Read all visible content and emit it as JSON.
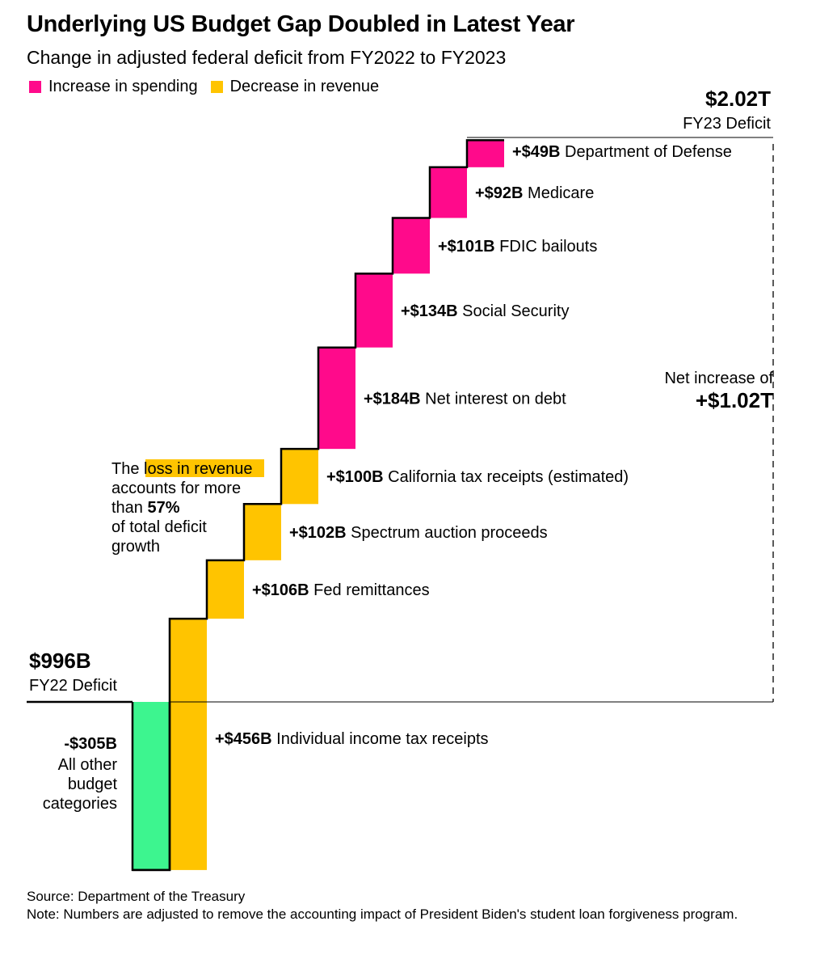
{
  "title": "Underlying US Budget Gap Doubled in Latest Year",
  "subtitle": "Change in adjusted federal deficit from FY2022 to FY2023",
  "legend": [
    {
      "label": "Increase in spending",
      "color": "#FF0A8B"
    },
    {
      "label": "Decrease in revenue",
      "color": "#FFC400"
    }
  ],
  "colors": {
    "spending": "#FF0A8B",
    "revenue": "#FFC400",
    "other": "#3DF58F",
    "highlight": "#FFC400",
    "line": "#000000",
    "connector": "#000000"
  },
  "chart_data": {
    "type": "waterfall",
    "unit": "$B",
    "start": {
      "value": 996,
      "value_label": "$996B",
      "label": "FY22 Deficit"
    },
    "end": {
      "value": 2020,
      "value_label": "$2.02T",
      "label": "FY23 Deficit"
    },
    "steps": [
      {
        "name": "All other budget categories",
        "value": -305,
        "value_label": "-$305B",
        "category": "other"
      },
      {
        "name": "Individual income tax receipts",
        "value": 456,
        "value_label": "+$456B",
        "category": "revenue"
      },
      {
        "name": "Fed remittances",
        "value": 106,
        "value_label": "+$106B",
        "category": "revenue"
      },
      {
        "name": "Spectrum auction proceeds",
        "value": 102,
        "value_label": "+$102B",
        "category": "revenue"
      },
      {
        "name": "California tax receipts (estimated)",
        "value": 100,
        "value_label": "+$100B",
        "category": "revenue"
      },
      {
        "name": "Net interest on debt",
        "value": 184,
        "value_label": "+$184B",
        "category": "spending"
      },
      {
        "name": "Social Security",
        "value": 134,
        "value_label": "+$134B",
        "category": "spending"
      },
      {
        "name": "FDIC bailouts",
        "value": 101,
        "value_label": "+$101B",
        "category": "spending"
      },
      {
        "name": "Medicare",
        "value": 92,
        "value_label": "+$92B",
        "category": "spending"
      },
      {
        "name": "Department of Defense",
        "value": 49,
        "value_label": "+$49B",
        "category": "spending"
      }
    ],
    "net_change": {
      "label": "Net increase of",
      "value_label": "+$1.02T"
    },
    "annotation": {
      "pre": "The ",
      "highlight": "loss in revenue",
      "mid": " accounts for more than ",
      "bold": "57%",
      "post": " of total deficit growth"
    }
  },
  "footer": {
    "source": "Source: Department of the Treasury",
    "note": "Note: Numbers are adjusted to remove the accounting impact of President Biden's student loan forgiveness program."
  }
}
